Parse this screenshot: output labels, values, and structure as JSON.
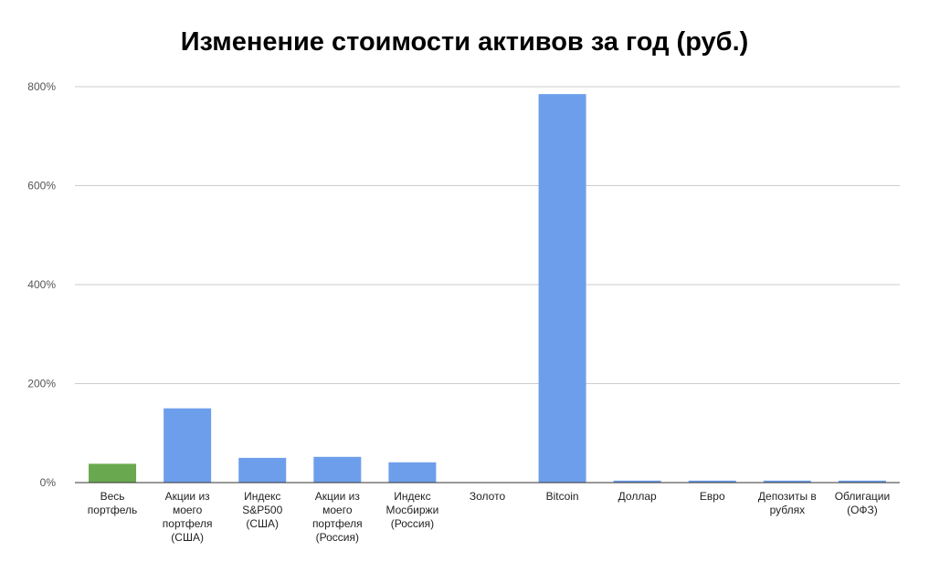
{
  "chart_data": {
    "type": "bar",
    "title": "Изменение стоимости активов за год (руб.)",
    "xlabel": "",
    "ylabel": "",
    "ylim": [
      0,
      800
    ],
    "yticks": [
      "0%",
      "200%",
      "400%",
      "600%",
      "800%"
    ],
    "ytick_values": [
      0,
      200,
      400,
      600,
      800
    ],
    "grid": true,
    "categories": [
      [
        "Весь",
        "портфель"
      ],
      [
        "Акции из",
        "моего",
        "портфеля",
        "(США)"
      ],
      [
        "Индекс",
        "S&P500",
        "(США)"
      ],
      [
        "Акции из",
        "моего",
        "портфеля",
        "(Россия)"
      ],
      [
        "Индекс",
        "Мосбиржи",
        "(Россия)"
      ],
      [
        "Золото"
      ],
      [
        "Bitcoin"
      ],
      [
        "Доллар"
      ],
      [
        "Евро"
      ],
      [
        "Депозиты в",
        "рублях"
      ],
      [
        "Облигации",
        "(ОФЗ)"
      ]
    ],
    "values": [
      38,
      150,
      50,
      52,
      41,
      1,
      785,
      4,
      4,
      4,
      4
    ],
    "colors": [
      "#6aa84f",
      "#6d9eeb",
      "#6d9eeb",
      "#6d9eeb",
      "#6d9eeb",
      "#6d9eeb",
      "#6d9eeb",
      "#6d9eeb",
      "#6d9eeb",
      "#6d9eeb",
      "#6d9eeb"
    ],
    "gridline_color": "#cccccc",
    "axis_color": "#333333"
  }
}
